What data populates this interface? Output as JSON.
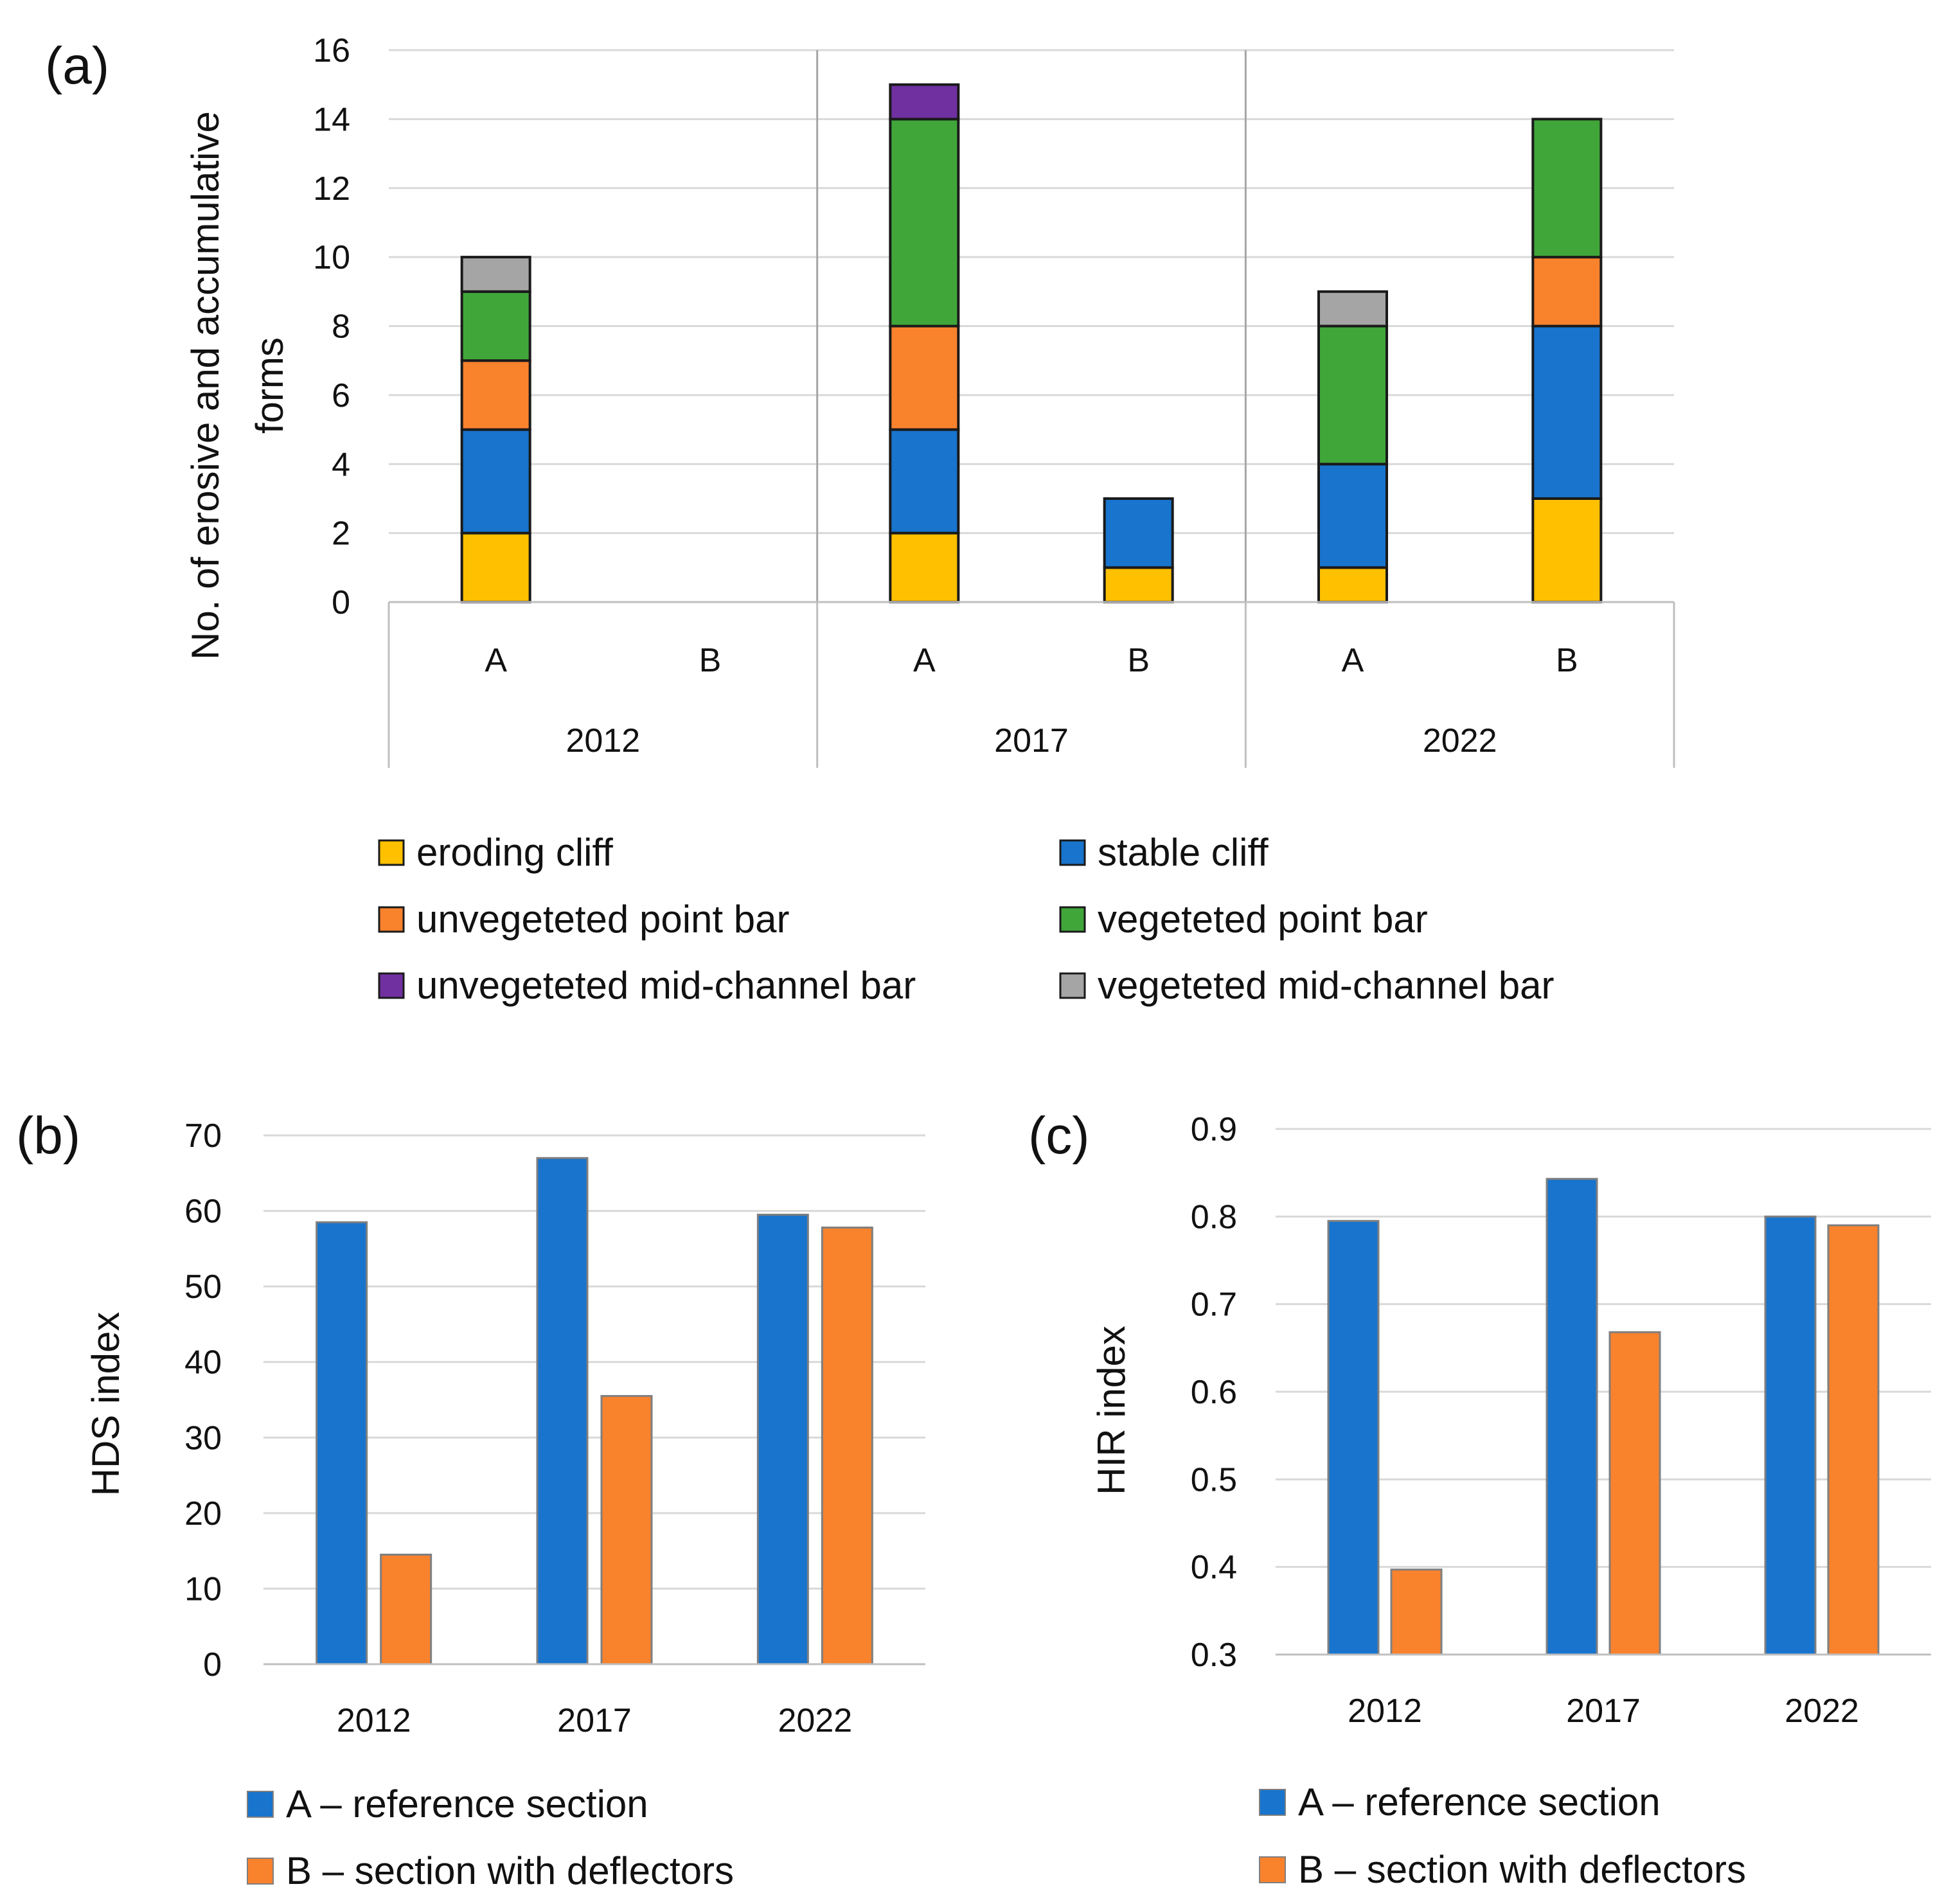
{
  "chart_data": [
    {
      "panel": "(a)",
      "type": "bar",
      "stacked": true,
      "ylabel": "No. of erosive and accumulative forms",
      "ylim": [
        0,
        16
      ],
      "yticks": [
        "0",
        "2",
        "4",
        "6",
        "8",
        "10",
        "12",
        "14",
        "16"
      ],
      "groups": [
        "2012",
        "2017",
        "2022"
      ],
      "categories": [
        "A",
        "B",
        "A",
        "B",
        "A",
        "B"
      ],
      "colors": {
        "eroding_cliff": "#FFC000",
        "stable_cliff": "#1874CD",
        "unvegetated_point_bar": "#F9822D",
        "vegetated_point_bar": "#40A63A",
        "unvegetated_mid_channel_bar": "#7030A0",
        "vegetated_mid_channel_bar": "#A5A5A5"
      },
      "series": [
        {
          "key": "eroding_cliff",
          "name": "eroding cliff",
          "values": [
            2,
            0,
            2,
            1,
            1,
            3
          ]
        },
        {
          "key": "stable_cliff",
          "name": "stable cliff",
          "values": [
            3,
            0,
            3,
            2,
            3,
            5
          ]
        },
        {
          "key": "unvegetated_point_bar",
          "name": "unvegeteted point bar",
          "values": [
            2,
            0,
            3,
            0,
            0,
            2
          ]
        },
        {
          "key": "vegetated_point_bar",
          "name": "vegeteted point bar",
          "values": [
            2,
            0,
            6,
            0,
            4,
            4
          ]
        },
        {
          "key": "unvegetated_mid_channel_bar",
          "name": "unvegeteted mid-channel bar",
          "values": [
            0,
            0,
            1,
            0,
            0,
            0
          ]
        },
        {
          "key": "vegetated_mid_channel_bar",
          "name": "vegeteted mid-channel bar",
          "values": [
            1,
            0,
            0,
            0,
            1,
            0
          ]
        }
      ]
    },
    {
      "panel": "(b)",
      "type": "bar",
      "ylabel": "HDS index",
      "ylim": [
        0,
        70
      ],
      "yticks": [
        "0",
        "10",
        "20",
        "30",
        "40",
        "50",
        "60",
        "70"
      ],
      "categories": [
        "2012",
        "2017",
        "2022"
      ],
      "series": [
        {
          "name": "A – reference section",
          "color": "#1874CD",
          "values": [
            58.5,
            67,
            59.5
          ]
        },
        {
          "name": "B – section with deflectors",
          "color": "#F9822D",
          "values": [
            14.5,
            35.5,
            57.8
          ]
        }
      ]
    },
    {
      "panel": "(c)",
      "type": "bar",
      "ylabel": "HIR index",
      "ylim": [
        0.3,
        0.9
      ],
      "yticks": [
        "0.3",
        "0.4",
        "0.5",
        "0.6",
        "0.7",
        "0.8",
        "0.9"
      ],
      "categories": [
        "2012",
        "2017",
        "2022"
      ],
      "series": [
        {
          "name": "A – reference section",
          "color": "#1874CD",
          "values": [
            0.795,
            0.843,
            0.8
          ]
        },
        {
          "name": "B – section with deflectors",
          "color": "#F9822D",
          "values": [
            0.397,
            0.668,
            0.79
          ]
        }
      ]
    }
  ]
}
